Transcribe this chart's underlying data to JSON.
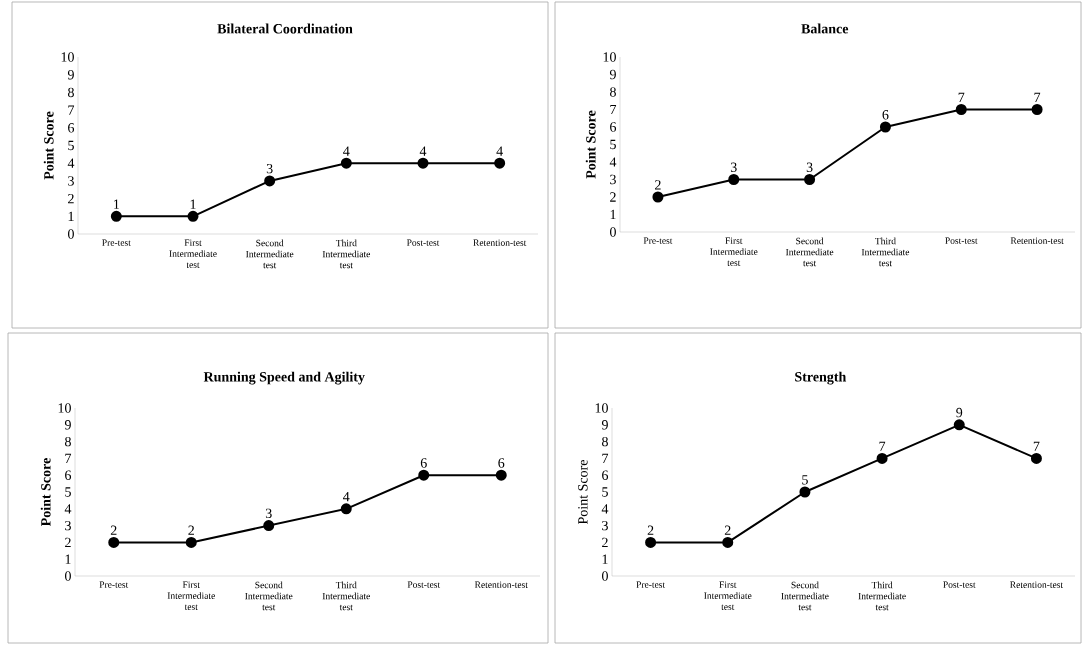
{
  "chart_data": [
    {
      "type": "line",
      "title": "Bilateral Coordination",
      "ylabel": "Point Score",
      "categories": [
        "Pre-test",
        "First Intermediate test",
        "Second Intermediate test",
        "Third Intermediate test",
        "Post-test",
        "Retention-test"
      ],
      "series": [
        {
          "color": "#000000",
          "values": [
            1,
            1,
            3,
            4,
            4,
            4
          ]
        }
      ],
      "ylim": [
        0,
        10
      ],
      "yticks": [
        0,
        1,
        2,
        3,
        4,
        5,
        6,
        7,
        8,
        9,
        10
      ],
      "marker": "circle",
      "data_labels": true
    },
    {
      "type": "line",
      "title": "Balance",
      "ylabel": "Point Score",
      "categories": [
        "Pre-test",
        "First Intermediate test",
        "Second Intermediate test",
        "Third Intermediate test",
        "Post-test",
        "Retention-test"
      ],
      "series": [
        {
          "color": "#000000",
          "values": [
            2,
            3,
            3,
            6,
            7,
            7
          ]
        }
      ],
      "ylim": [
        0,
        10
      ],
      "yticks": [
        0,
        1,
        2,
        3,
        4,
        5,
        6,
        7,
        8,
        9,
        10
      ],
      "marker": "circle",
      "data_labels": true
    },
    {
      "type": "line",
      "title": "Running Speed and Agility",
      "ylabel": "Point Score",
      "categories": [
        "Pre-test",
        "First Intermediate test",
        "Second Intermediate test",
        "Third Intermediate test",
        "Post-test",
        "Retention-test"
      ],
      "series": [
        {
          "color": "#000000",
          "values": [
            2,
            2,
            3,
            4,
            6,
            6
          ]
        }
      ],
      "ylim": [
        0,
        10
      ],
      "yticks": [
        0,
        1,
        2,
        3,
        4,
        5,
        6,
        7,
        8,
        9,
        10
      ],
      "marker": "circle",
      "data_labels": true
    },
    {
      "type": "line",
      "title": "Strength",
      "ylabel": "Point Score",
      "categories": [
        "Pre-test",
        "First Intermediate test",
        "Second Intermediate test",
        "Third Intermediate test",
        "Post-test",
        "Retention-test"
      ],
      "series": [
        {
          "color": "#000000",
          "values": [
            2,
            2,
            5,
            7,
            9,
            7
          ]
        }
      ],
      "ylim": [
        0,
        10
      ],
      "yticks": [
        0,
        1,
        2,
        3,
        4,
        5,
        6,
        7,
        8,
        9,
        10
      ],
      "marker": "circle",
      "data_labels": true
    }
  ]
}
